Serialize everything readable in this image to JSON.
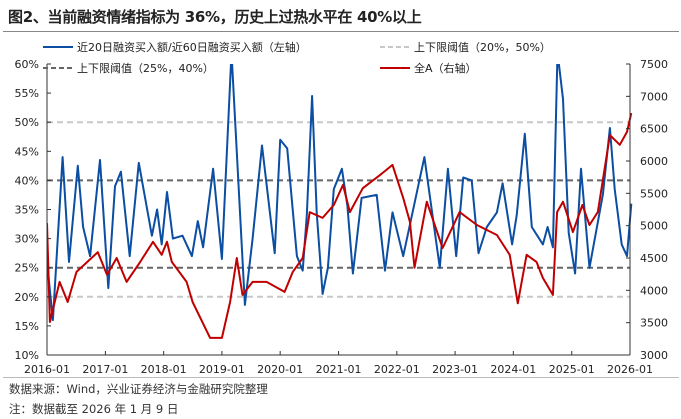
{
  "title": "图2、当前融资情绪指标为 36%，历史上过热水平在 40%以上",
  "footer": {
    "source": "数据来源：Wind，兴业证券经济与金融研究院整理",
    "note": "注：数据截至 2026 年 1 月 9 日"
  },
  "chart_data": {
    "type": "line",
    "title": "",
    "x_type": "date",
    "xlim": [
      "2016-01-01",
      "2026-01-15"
    ],
    "x_ticks": [
      "2016-01",
      "2017-01",
      "2018-01",
      "2019-01",
      "2020-01",
      "2021-01",
      "2022-01",
      "2023-01",
      "2024-01",
      "2025-01",
      "2026-01"
    ],
    "y_left": {
      "lim": [
        10,
        60
      ],
      "unit": "%",
      "ticks": [
        "10%",
        "15%",
        "20%",
        "25%",
        "30%",
        "35%",
        "40%",
        "45%",
        "50%",
        "55%",
        "60%"
      ]
    },
    "y_right": {
      "lim": [
        3000,
        7500
      ],
      "ticks": [
        "3000",
        "3500",
        "4000",
        "4500",
        "5000",
        "5500",
        "6000",
        "6500",
        "7000",
        "7500"
      ]
    },
    "grid": false,
    "legend_position": "top",
    "colors": {
      "ratio": "#0b4ea2",
      "index": "#c00000",
      "band_outer": "#c8c8c8",
      "band_inner": "#666666"
    },
    "legend": [
      {
        "label": "近20日融资买入额/近60日融资买入额（左轴）",
        "style": "solid",
        "color": "#0b4ea2"
      },
      {
        "label": "上下限阈值（20%，50%）",
        "style": "dashed",
        "color": "#c8c8c8"
      },
      {
        "label": "上下限阈值（25%，40%）",
        "style": "dashed",
        "color": "#666666"
      },
      {
        "label": "全A（右轴）",
        "style": "solid",
        "color": "#c00000"
      }
    ],
    "thresholds_outer": [
      20,
      50
    ],
    "thresholds_inner": [
      25,
      40
    ],
    "series": [
      {
        "name": "近20日融资买入额/近60日融资买入额（左轴）",
        "axis": "left",
        "points": [
          [
            "2016-01-01",
            26
          ],
          [
            "2016-02-07",
            16
          ],
          [
            "2016-04-08",
            44
          ],
          [
            "2016-05-18",
            26
          ],
          [
            "2016-07-12",
            42.5
          ],
          [
            "2016-08-14",
            32
          ],
          [
            "2016-09-27",
            27
          ],
          [
            "2016-11-28",
            43.5
          ],
          [
            "2017-01-19",
            21.5
          ],
          [
            "2017-03-02",
            39
          ],
          [
            "2017-04-08",
            41.5
          ],
          [
            "2017-06-02",
            27
          ],
          [
            "2017-07-29",
            43
          ],
          [
            "2017-10-19",
            30.5
          ],
          [
            "2017-11-21",
            35
          ],
          [
            "2017-12-20",
            29
          ],
          [
            "2018-01-22",
            38
          ],
          [
            "2018-02-28",
            30
          ],
          [
            "2018-04-29",
            30.5
          ],
          [
            "2018-06-27",
            27
          ],
          [
            "2018-08-03",
            33
          ],
          [
            "2018-09-05",
            28.5
          ],
          [
            "2018-11-07",
            42
          ],
          [
            "2019-01-01",
            26.5
          ],
          [
            "2019-03-02",
            62
          ],
          [
            "2019-05-25",
            18.6
          ],
          [
            "2019-07-12",
            30
          ],
          [
            "2019-09-09",
            46
          ],
          [
            "2019-11-28",
            27.5
          ],
          [
            "2020-01-01",
            47
          ],
          [
            "2020-02-14",
            45.5
          ],
          [
            "2020-04-15",
            27
          ],
          [
            "2020-05-21",
            24.5
          ],
          [
            "2020-06-16",
            34
          ],
          [
            "2020-07-19",
            54.5
          ],
          [
            "2020-08-17",
            34.5
          ],
          [
            "2020-09-23",
            20.5
          ],
          [
            "2020-10-26",
            25
          ],
          [
            "2020-12-02",
            38.5
          ],
          [
            "2021-01-22",
            42
          ],
          [
            "2021-02-25",
            35.6
          ],
          [
            "2021-04-01",
            24
          ],
          [
            "2021-05-25",
            37
          ],
          [
            "2021-08-28",
            37.5
          ],
          [
            "2021-10-19",
            24.5
          ],
          [
            "2021-12-05",
            34.5
          ],
          [
            "2022-02-10",
            27
          ],
          [
            "2022-06-23",
            44
          ],
          [
            "2022-09-27",
            25
          ],
          [
            "2022-11-17",
            42
          ],
          [
            "2023-01-08",
            27
          ],
          [
            "2023-02-21",
            40.5
          ],
          [
            "2023-04-15",
            40
          ],
          [
            "2023-05-28",
            27.5
          ],
          [
            "2023-07-19",
            32
          ],
          [
            "2023-09-20",
            34.5
          ],
          [
            "2023-10-26",
            39.5
          ],
          [
            "2023-12-24",
            29
          ],
          [
            "2024-01-22",
            34
          ],
          [
            "2024-03-13",
            48
          ],
          [
            "2024-04-26",
            32
          ],
          [
            "2024-07-04",
            29
          ],
          [
            "2024-08-03",
            32
          ],
          [
            "2024-09-05",
            28.5
          ],
          [
            "2024-10-04",
            62
          ],
          [
            "2024-11-07",
            54
          ],
          [
            "2024-12-13",
            31
          ],
          [
            "2025-01-22",
            24
          ],
          [
            "2025-02-28",
            42
          ],
          [
            "2025-04-22",
            25
          ],
          [
            "2025-07-15",
            37.6
          ],
          [
            "2025-08-28",
            49
          ],
          [
            "2025-09-27",
            38.5
          ],
          [
            "2025-11-10",
            29
          ],
          [
            "2025-12-13",
            27
          ],
          [
            "2026-01-09",
            36
          ]
        ]
      },
      {
        "name": "全A（右轴）",
        "axis": "right",
        "points": [
          [
            "2016-01-01",
            5040
          ],
          [
            "2016-01-19",
            3510
          ],
          [
            "2016-03-20",
            4130
          ],
          [
            "2016-05-10",
            3820
          ],
          [
            "2016-07-04",
            4285
          ],
          [
            "2016-11-14",
            4590
          ],
          [
            "2017-01-11",
            4240
          ],
          [
            "2017-03-13",
            4500
          ],
          [
            "2017-05-14",
            4130
          ],
          [
            "2017-08-07",
            4440
          ],
          [
            "2017-10-26",
            4750
          ],
          [
            "2017-12-20",
            4550
          ],
          [
            "2018-01-22",
            4750
          ],
          [
            "2018-02-21",
            4440
          ],
          [
            "2018-05-25",
            4130
          ],
          [
            "2018-07-01",
            3820
          ],
          [
            "2018-10-19",
            3265
          ],
          [
            "2019-01-01",
            3265
          ],
          [
            "2019-02-21",
            3820
          ],
          [
            "2019-04-04",
            4500
          ],
          [
            "2019-05-10",
            3930
          ],
          [
            "2019-07-12",
            4130
          ],
          [
            "2019-10-08",
            4130
          ],
          [
            "2020-01-29",
            3975
          ],
          [
            "2020-03-20",
            4285
          ],
          [
            "2020-05-21",
            4500
          ],
          [
            "2020-07-04",
            5210
          ],
          [
            "2020-09-23",
            5120
          ],
          [
            "2020-12-02",
            5320
          ],
          [
            "2021-01-29",
            5630
          ],
          [
            "2021-03-13",
            5210
          ],
          [
            "2021-06-02",
            5580
          ],
          [
            "2021-09-16",
            5780
          ],
          [
            "2021-12-05",
            5940
          ],
          [
            "2022-02-10",
            5430
          ],
          [
            "2022-03-24",
            5060
          ],
          [
            "2022-04-22",
            4350
          ],
          [
            "2022-07-08",
            5370
          ],
          [
            "2022-10-15",
            4655
          ],
          [
            "2023-01-29",
            5210
          ],
          [
            "2023-05-18",
            5010
          ],
          [
            "2023-09-20",
            4855
          ],
          [
            "2023-12-09",
            4550
          ],
          [
            "2024-01-29",
            3800
          ],
          [
            "2024-03-24",
            4550
          ],
          [
            "2024-05-25",
            4440
          ],
          [
            "2024-07-04",
            4190
          ],
          [
            "2024-09-05",
            3930
          ],
          [
            "2024-10-01",
            5210
          ],
          [
            "2024-11-07",
            5370
          ],
          [
            "2025-01-08",
            4900
          ],
          [
            "2025-03-09",
            5320
          ],
          [
            "2025-04-22",
            5010
          ],
          [
            "2025-06-13",
            5210
          ],
          [
            "2025-08-28",
            6400
          ],
          [
            "2025-10-29",
            6250
          ],
          [
            "2025-12-13",
            6450
          ],
          [
            "2026-01-09",
            6740
          ]
        ]
      }
    ]
  }
}
